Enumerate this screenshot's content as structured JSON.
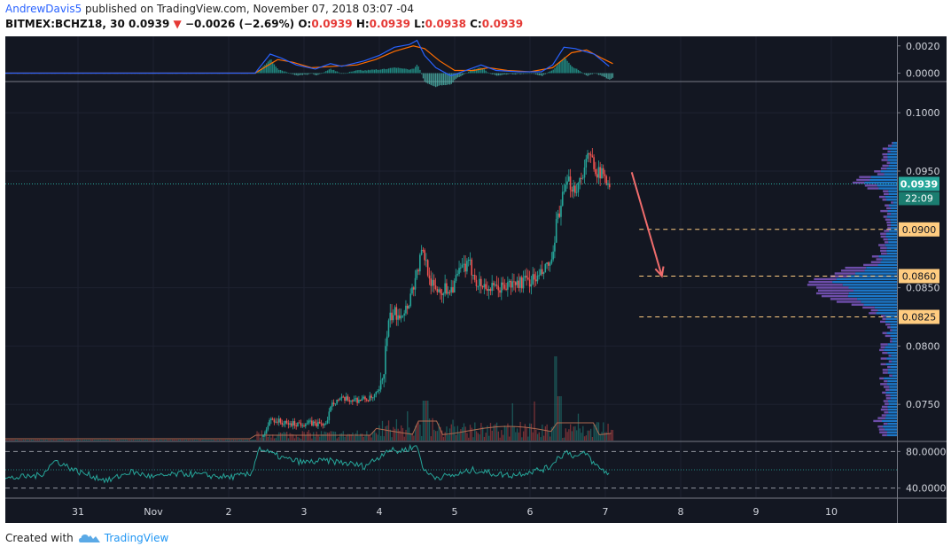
{
  "header": {
    "author": "AndrewDavis5",
    "published": "published on TradingView.com, November 07, 2018 03:07 -04",
    "symbol": "BITMEX:BCHZ18, 30",
    "last": "0.0939",
    "change": "−0.0026 (−2.69%)",
    "o_label": "O:",
    "o_value": "0.0939",
    "h_label": "H:",
    "h_value": "0.0939",
    "l_label": "L:",
    "l_value": "0.0938",
    "c_label": "C:",
    "c_value": "0.0939"
  },
  "footer": {
    "created_with": "Created with",
    "brand": "TradingView"
  },
  "colors": {
    "background": "#131722",
    "grid": "#1e2230",
    "up": "#26a69a",
    "down": "#ef5350",
    "macd": "#2962ff",
    "signal": "#ff6d00",
    "rsi": "#26a69a",
    "profile_up": "#1e88e5",
    "profile_down": "#7e57c2",
    "level": "#ffcc80",
    "arrow": "#ef6c6c",
    "price_tag": "#26a69a"
  },
  "chart_data": {
    "type": "candlestick",
    "x_ticks": [
      "31",
      "Nov",
      "2",
      "3",
      "4",
      "5",
      "6",
      "7",
      "8",
      "9",
      "10"
    ],
    "x_days": [
      -1,
      0,
      1,
      2,
      3,
      4,
      5,
      6,
      7,
      8,
      9
    ],
    "price_axis": {
      "ticks": [
        "0.1000",
        "0.0950",
        "0.0850",
        "0.0800",
        "0.0750"
      ],
      "tick_values": [
        0.1,
        0.095,
        0.085,
        0.08,
        0.075
      ],
      "range": [
        0.0719,
        0.1026
      ]
    },
    "price_points": [
      [
        1.45,
        0.0722
      ],
      [
        1.55,
        0.0738
      ],
      [
        1.75,
        0.0733
      ],
      [
        2.0,
        0.0734
      ],
      [
        2.3,
        0.0733
      ],
      [
        2.35,
        0.0752
      ],
      [
        2.45,
        0.0754
      ],
      [
        2.7,
        0.0754
      ],
      [
        2.9,
        0.0755
      ],
      [
        3.0,
        0.0762
      ],
      [
        3.05,
        0.078
      ],
      [
        3.1,
        0.0815
      ],
      [
        3.15,
        0.0826
      ],
      [
        3.35,
        0.0832
      ],
      [
        3.5,
        0.0865
      ],
      [
        3.55,
        0.088
      ],
      [
        3.6,
        0.0875
      ],
      [
        3.7,
        0.085
      ],
      [
        3.8,
        0.0848
      ],
      [
        3.95,
        0.085
      ],
      [
        4.1,
        0.0868
      ],
      [
        4.2,
        0.0868
      ],
      [
        4.3,
        0.0854
      ],
      [
        4.5,
        0.0848
      ],
      [
        4.7,
        0.0852
      ],
      [
        4.9,
        0.0855
      ],
      [
        5.1,
        0.0858
      ],
      [
        5.25,
        0.087
      ],
      [
        5.3,
        0.0875
      ],
      [
        5.35,
        0.091
      ],
      [
        5.45,
        0.0932
      ],
      [
        5.5,
        0.094
      ],
      [
        5.6,
        0.0935
      ],
      [
        5.65,
        0.0942
      ],
      [
        5.75,
        0.096
      ],
      [
        5.8,
        0.0962
      ],
      [
        5.9,
        0.0948
      ],
      [
        6.0,
        0.0945
      ],
      [
        6.05,
        0.0939
      ]
    ],
    "levels": [
      {
        "value": 0.09,
        "label": "0.0900"
      },
      {
        "value": 0.086,
        "label": "0.0860"
      },
      {
        "value": 0.0825,
        "label": "0.0825"
      }
    ],
    "current_price": {
      "value": 0.0939,
      "label": "0.0939",
      "countdown": "22:09"
    },
    "projection": {
      "from": [
        6.35,
        0.0949
      ],
      "to": [
        6.75,
        0.086
      ]
    },
    "macd": {
      "ticks": [
        "0.0020",
        "0.0000"
      ],
      "tick_values": [
        0.002,
        0.0
      ],
      "range": [
        -0.00055,
        0.0027
      ],
      "macd_points": [
        [
          -2.0,
          0.0
        ],
        [
          1.35,
          0.0
        ],
        [
          1.45,
          0.0007
        ],
        [
          1.55,
          0.0014
        ],
        [
          1.7,
          0.0011
        ],
        [
          1.9,
          0.0006
        ],
        [
          2.15,
          0.0003
        ],
        [
          2.35,
          0.0007
        ],
        [
          2.5,
          0.0005
        ],
        [
          2.8,
          0.0009
        ],
        [
          3.0,
          0.0013
        ],
        [
          3.2,
          0.0019
        ],
        [
          3.4,
          0.0021
        ],
        [
          3.5,
          0.0024
        ],
        [
          3.6,
          0.0013
        ],
        [
          3.75,
          0.0004
        ],
        [
          3.95,
          -0.0002
        ],
        [
          4.2,
          0.0003
        ],
        [
          4.35,
          0.0006
        ],
        [
          4.55,
          0.0002
        ],
        [
          4.85,
          0.0001
        ],
        [
          5.15,
          0.0001
        ],
        [
          5.3,
          0.0006
        ],
        [
          5.45,
          0.0019
        ],
        [
          5.6,
          0.0018
        ],
        [
          5.85,
          0.0014
        ],
        [
          6.05,
          0.0005
        ]
      ],
      "signal_points": [
        [
          -2.0,
          0.0
        ],
        [
          1.35,
          0.0
        ],
        [
          1.5,
          0.0005
        ],
        [
          1.65,
          0.001
        ],
        [
          1.85,
          0.0008
        ],
        [
          2.1,
          0.0004
        ],
        [
          2.4,
          0.0005
        ],
        [
          2.7,
          0.0006
        ],
        [
          2.95,
          0.001
        ],
        [
          3.2,
          0.0016
        ],
        [
          3.45,
          0.002
        ],
        [
          3.6,
          0.0018
        ],
        [
          3.8,
          0.0009
        ],
        [
          4.0,
          0.0002
        ],
        [
          4.25,
          0.0002
        ],
        [
          4.45,
          0.0004
        ],
        [
          4.7,
          0.0002
        ],
        [
          5.0,
          0.0001
        ],
        [
          5.3,
          0.0004
        ],
        [
          5.55,
          0.0015
        ],
        [
          5.75,
          0.0017
        ],
        [
          5.95,
          0.0011
        ],
        [
          6.1,
          0.0007
        ]
      ]
    },
    "rsi": {
      "ticks": [
        "80.0000",
        "40.0000"
      ],
      "tick_values": [
        80,
        40
      ],
      "range": [
        30,
        90
      ],
      "bands": [
        80,
        60,
        40
      ],
      "points": [
        [
          -2.0,
          50
        ],
        [
          -1.5,
          54
        ],
        [
          -1.3,
          70
        ],
        [
          -1.0,
          58
        ],
        [
          -0.6,
          48
        ],
        [
          -0.3,
          58
        ],
        [
          0.0,
          52
        ],
        [
          0.4,
          56
        ],
        [
          0.7,
          54
        ],
        [
          1.0,
          52
        ],
        [
          1.3,
          55
        ],
        [
          1.4,
          84
        ],
        [
          1.55,
          78
        ],
        [
          1.75,
          72
        ],
        [
          2.0,
          68
        ],
        [
          2.3,
          70
        ],
        [
          2.5,
          68
        ],
        [
          2.8,
          64
        ],
        [
          3.0,
          74
        ],
        [
          3.1,
          82
        ],
        [
          3.25,
          80
        ],
        [
          3.5,
          86
        ],
        [
          3.6,
          58
        ],
        [
          3.75,
          52
        ],
        [
          4.0,
          54
        ],
        [
          4.25,
          60
        ],
        [
          4.5,
          56
        ],
        [
          4.75,
          54
        ],
        [
          5.0,
          58
        ],
        [
          5.25,
          62
        ],
        [
          5.35,
          72
        ],
        [
          5.5,
          80
        ],
        [
          5.6,
          74
        ],
        [
          5.75,
          78
        ],
        [
          5.85,
          66
        ],
        [
          6.0,
          58
        ],
        [
          6.05,
          56
        ]
      ]
    }
  }
}
